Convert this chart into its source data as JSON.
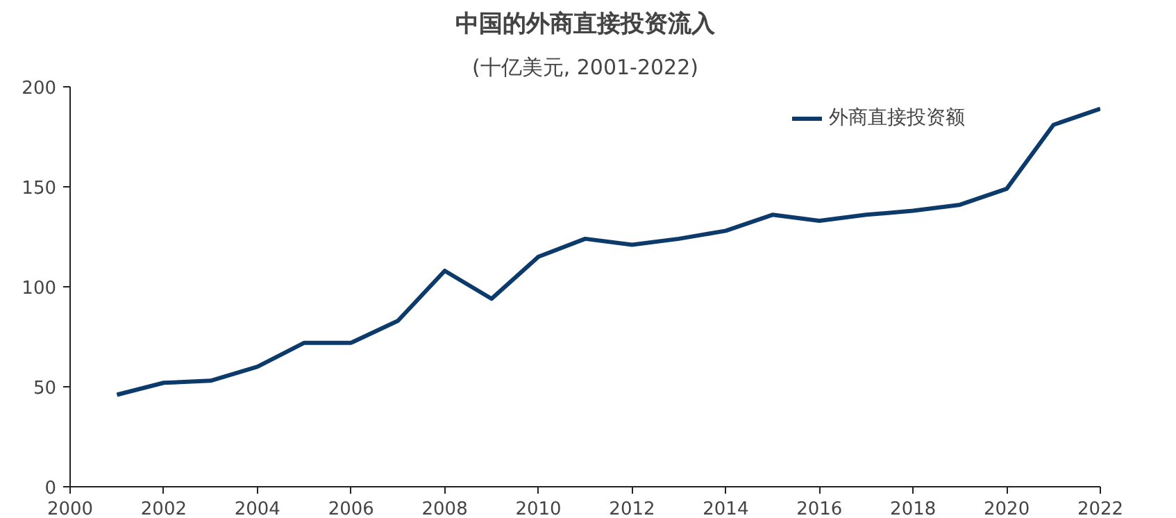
{
  "chart_data": {
    "type": "line",
    "title": "中国的外商直接投资流入",
    "subtitle": "(十亿美元, 2001-2022)",
    "x": [
      2001,
      2002,
      2003,
      2004,
      2005,
      2006,
      2007,
      2008,
      2009,
      2010,
      2011,
      2012,
      2013,
      2014,
      2015,
      2016,
      2017,
      2018,
      2019,
      2020,
      2021,
      2022
    ],
    "series": [
      {
        "name": "外商直接投资额",
        "color": "#0b3a6b",
        "values": [
          46,
          52,
          53,
          60,
          72,
          72,
          83,
          108,
          94,
          115,
          124,
          121,
          124,
          128,
          136,
          133,
          136,
          138,
          141,
          149,
          181,
          189
        ]
      }
    ],
    "xlim": [
      2000,
      2022
    ],
    "xticks": [
      2000,
      2002,
      2004,
      2006,
      2008,
      2010,
      2012,
      2014,
      2016,
      2018,
      2020,
      2022
    ],
    "ylim": [
      0,
      200
    ],
    "yticks": [
      0,
      50,
      100,
      150,
      200
    ],
    "grid": false,
    "legend": "top right",
    "marker": "none",
    "line_style": "solid"
  }
}
